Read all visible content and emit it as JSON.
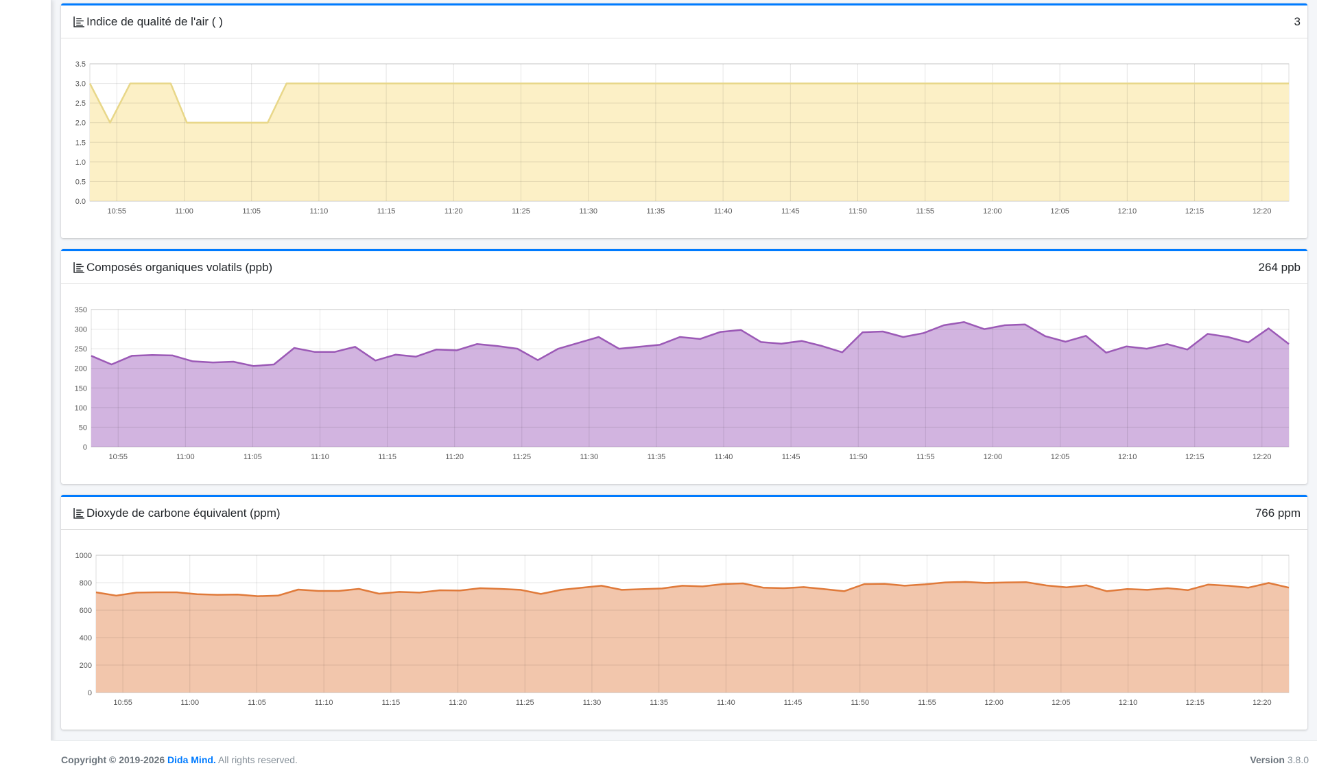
{
  "cards": [
    {
      "title": "Indice de qualité de l'air ( )",
      "value": "3",
      "chart_data": {
        "type": "area",
        "color": "#e8d789",
        "fill": "#fcf0c6",
        "ylim": [
          0,
          3.5
        ],
        "yticks": [
          "0.0",
          "0.5",
          "1.0",
          "1.5",
          "2.0",
          "2.5",
          "3.0",
          "3.5"
        ],
        "xticks": [
          "10:55",
          "11:00",
          "11:05",
          "11:10",
          "11:15",
          "11:20",
          "11:25",
          "11:30",
          "11:35",
          "11:40",
          "11:45",
          "11:50",
          "11:55",
          "12:00",
          "12:05",
          "12:10",
          "12:15",
          "12:20"
        ],
        "x_start": "10:53",
        "x_end": "12:22",
        "points": [
          [
            "10:53",
            3
          ],
          [
            "10:54.5",
            2
          ],
          [
            "10:56",
            3
          ],
          [
            "10:59",
            3
          ],
          [
            "11:00.2",
            2
          ],
          [
            "11:06.2",
            2
          ],
          [
            "11:07.6",
            3
          ],
          [
            "12:22",
            3
          ]
        ]
      }
    },
    {
      "title": "Composés organiques volatils (ppb)",
      "value": "264 ppb",
      "chart_data": {
        "type": "area",
        "color": "#9b59b6",
        "fill": "#d2b4e0",
        "ylim": [
          0,
          350
        ],
        "yticks": [
          "0",
          "50",
          "100",
          "150",
          "200",
          "250",
          "300",
          "350"
        ],
        "xticks": [
          "10:55",
          "11:00",
          "11:05",
          "11:10",
          "11:15",
          "11:20",
          "11:25",
          "11:30",
          "11:35",
          "11:40",
          "11:45",
          "11:50",
          "11:55",
          "12:00",
          "12:05",
          "12:10",
          "12:15",
          "12:20"
        ],
        "x_start": "10:53",
        "x_end": "12:22",
        "values": [
          232,
          210,
          232,
          234,
          233,
          218,
          215,
          217,
          206,
          210,
          252,
          242,
          242,
          255,
          220,
          235,
          230,
          248,
          246,
          262,
          257,
          250,
          221,
          250,
          265,
          280,
          250,
          255,
          260,
          280,
          275,
          293,
          298,
          267,
          263,
          270,
          257,
          241,
          292,
          294,
          280,
          290,
          310,
          318,
          300,
          310,
          312,
          282,
          268,
          283,
          240,
          256,
          250,
          262,
          248,
          288,
          280,
          266,
          302,
          262
        ]
      }
    },
    {
      "title": "Dioxyde de carbone équivalent (ppm)",
      "value": "766 ppm",
      "chart_data": {
        "type": "area",
        "color": "#e07a3a",
        "fill": "#f2c6ac",
        "ylim": [
          0,
          1000
        ],
        "yticks": [
          "0",
          "200",
          "400",
          "600",
          "800",
          "1000"
        ],
        "xticks": [
          "10:55",
          "11:00",
          "11:05",
          "11:10",
          "11:15",
          "11:20",
          "11:25",
          "11:30",
          "11:35",
          "11:40",
          "11:45",
          "11:50",
          "11:55",
          "12:00",
          "12:05",
          "12:10",
          "12:15",
          "12:20"
        ],
        "x_start": "10:53",
        "x_end": "12:22",
        "values": [
          730,
          706,
          728,
          730,
          730,
          716,
          712,
          714,
          702,
          706,
          750,
          740,
          740,
          755,
          720,
          733,
          728,
          745,
          743,
          760,
          755,
          748,
          718,
          748,
          763,
          778,
          748,
          753,
          758,
          778,
          773,
          790,
          795,
          764,
          760,
          768,
          754,
          738,
          790,
          792,
          778,
          788,
          802,
          806,
          798,
          802,
          804,
          780,
          766,
          781,
          738,
          754,
          748,
          760,
          746,
          786,
          778,
          764,
          798,
          764
        ]
      }
    }
  ],
  "footer": {
    "copyright_prefix": "Copyright © 2019-2026",
    "brand": "Dida Mind.",
    "rights": "All rights reserved.",
    "version_label": "Version",
    "version": "3.8.0"
  }
}
